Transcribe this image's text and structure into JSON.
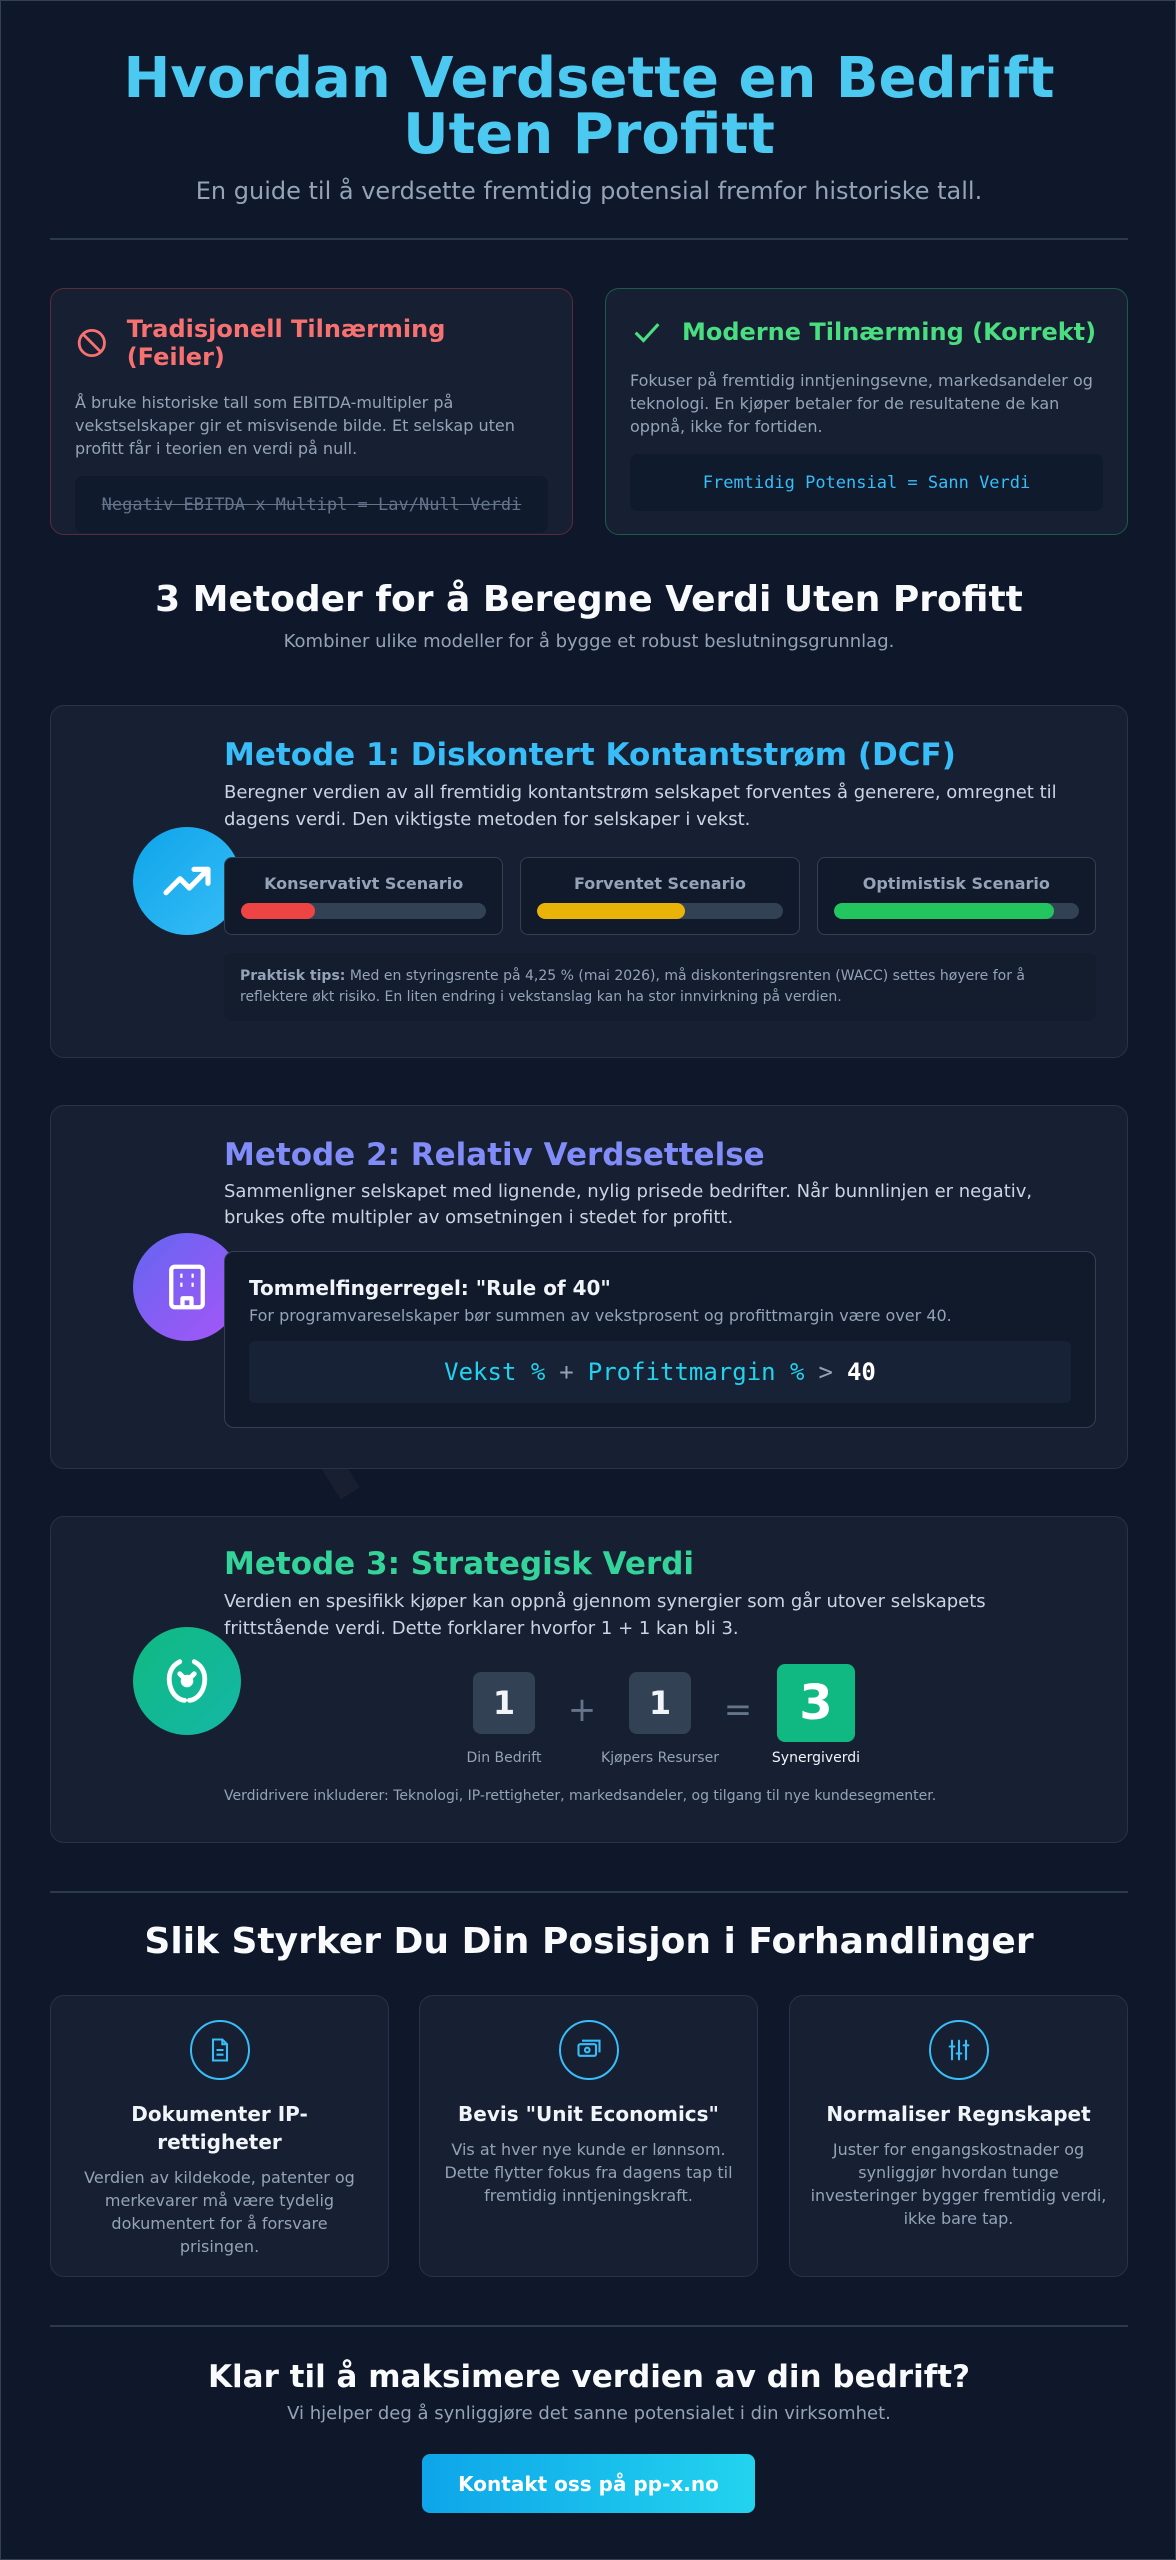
{
  "header": {
    "title": "Hvordan Verdsette en Bedrift Uten Profitt",
    "subtitle": "En guide til å verdsette fremtidig potensial fremfor historiske tall."
  },
  "approaches": [
    {
      "title": "Tradisjonell Tilnærming (Feiler)",
      "text": "Å bruke historiske tall som EBITDA-multipler på vekstselskaper gir et misvisende bilde. Et selskap uten profitt får i teorien en verdi på null.",
      "formula": "Negativ EBITDA x Multipl = Lav/Null Verdi"
    },
    {
      "title": "Moderne Tilnærming (Korrekt)",
      "text": "Fokuser på fremtidig inntjeningsevne, markedsandeler og teknologi. En kjøper betaler for de resultatene de kan oppnå, ikke for fortiden.",
      "formula": "Fremtidig Potensial = Sann Verdi"
    }
  ],
  "methods_section": {
    "title": "3 Metoder for å Beregne Verdi Uten Profitt",
    "subtitle": "Kombiner ulike modeller for å bygge et robust beslutningsgrunnlag."
  },
  "methods": [
    {
      "title": "Metode 1: Diskontert Kontantstrøm (DCF)",
      "text": "Beregner verdien av all fremtidig kontantstrøm selskapet forventes å generere, omregnet til dagens verdi. Den viktigste metoden for selskaper i vekst.",
      "scenarios": [
        "Konservativt Scenario",
        "Forventet Scenario",
        "Optimistisk Scenario"
      ],
      "tip_label": "Praktisk tips:",
      "tip": "Med en styringsrente på 4,25 % (mai 2026), må diskonteringsrenten (WACC) settes høyere for å reflektere økt risiko. En liten endring i vekstanslag kan ha stor innvirkning på verdien."
    },
    {
      "title": "Metode 2: Relativ Verdsettelse",
      "text": "Sammenligner selskapet med lignende, nylig prisede bedrifter. Når bunnlinjen er negativ, brukes ofte multipler av omsetningen i stedet for profitt.",
      "rule_title": "Tommelfingerregel: \"Rule of 40\"",
      "rule_text": "For programvareselskaper bør summen av vekstprosent og profittmargin være over 40.",
      "formula": [
        "Vekst %",
        "+",
        "Profittmargin %",
        ">",
        "40"
      ]
    },
    {
      "title": "Metode 3: Strategisk Verdi",
      "text": "Verdien en spesifikk kjøper kan oppnå gjennom synergier som går utover selskapets frittstående verdi. Dette forklarer hvorfor 1 + 1 kan bli 3.",
      "terms": [
        {
          "value": "1",
          "label": "Din Bedrift"
        },
        {
          "value": "1",
          "label": "Kjøpers Resurser"
        },
        {
          "value": "3",
          "label": "Synergiverdi"
        }
      ],
      "operators": [
        "+",
        "="
      ],
      "note": "Verdidrivere inkluderer: Teknologi, IP-rettigheter, markedsandeler, og tilgang til nye kundesegmenter."
    }
  ],
  "negotiation": {
    "title": "Slik Styrker Du Din Posisjon i Forhandlinger",
    "cards": [
      {
        "title": "Dokumenter IP-rettigheter",
        "text": "Verdien av kildekode, patenter og merkevarer må være tydelig dokumentert for å forsvare prisingen."
      },
      {
        "title": "Bevis \"Unit Economics\"",
        "text": "Vis at hver nye kunde er lønnsom. Dette flytter fokus fra dagens tap til fremtidig inntjeningskraft."
      },
      {
        "title": "Normaliser Regnskapet",
        "text": "Juster for engangskostnader og synliggjør hvordan tunge investeringer bygger fremtidig verdi, ikke bare tap."
      }
    ]
  },
  "cta": {
    "title": "Klar til å maksimere verdien av din bedrift?",
    "subtitle": "Vi hjelper deg å synliggjøre det sanne potensialet i din virksomhet.",
    "button": "Kontakt oss på pp-x.no"
  },
  "watermark": "pp-x.no"
}
